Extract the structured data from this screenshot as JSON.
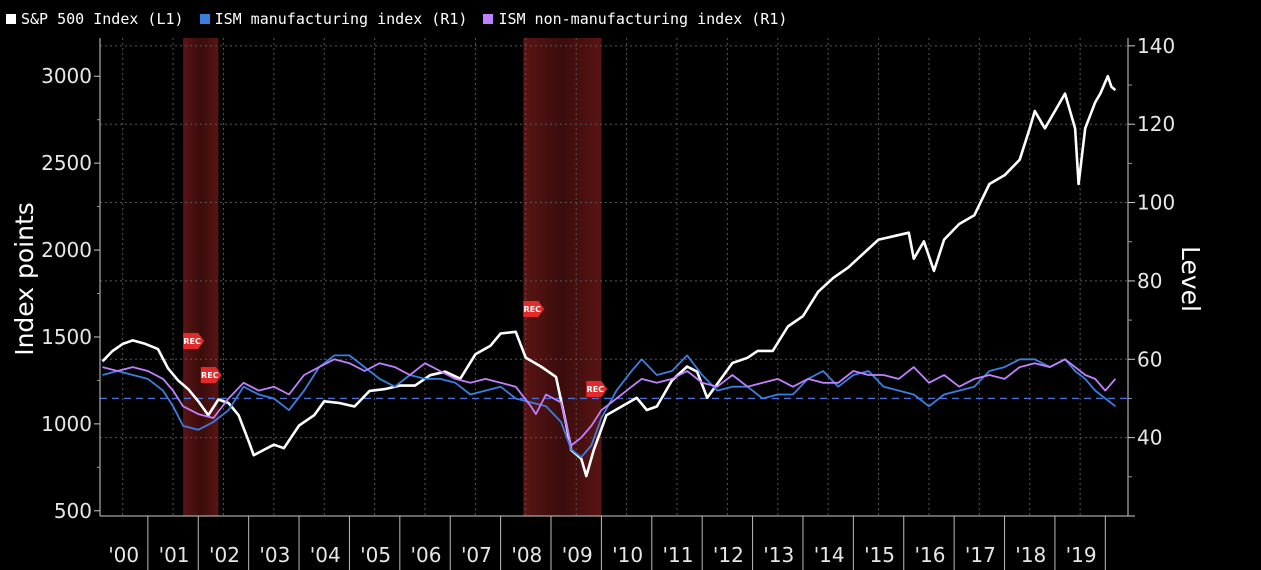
{
  "legend": [
    {
      "label": "S&P 500 Index (L1)",
      "color": "#ffffff"
    },
    {
      "label": "ISM manufacturing index (R1)",
      "color": "#3a7fe0"
    },
    {
      "label": "ISM non-manufacturing index (R1)",
      "color": "#c080ff"
    }
  ],
  "recession_marker_label": "REC",
  "chart_data": {
    "type": "line",
    "ylabel_left": "Index points",
    "ylabel_right": "Level",
    "x_tick_labels": [
      "'00",
      "'01",
      "'02",
      "'03",
      "'04",
      "'05",
      "'06",
      "'07",
      "'08",
      "'09",
      "'10",
      "'11",
      "'12",
      "'13",
      "'14",
      "'15",
      "'16",
      "'17",
      "'18",
      "'19"
    ],
    "xlim": [
      1999.55,
      2019.95
    ],
    "ylim_left": [
      470,
      3220
    ],
    "yticks_left": [
      500,
      1000,
      1500,
      2000,
      2500,
      3000
    ],
    "ylim_right": [
      20,
      142
    ],
    "yticks_right": [
      40,
      60,
      80,
      100,
      120,
      140
    ],
    "reference_line": {
      "axis": "right",
      "value": 50,
      "style": "dashed",
      "color": "#4a6fd8"
    },
    "recessions": [
      {
        "start": 2001.2,
        "end": 2001.9
      },
      {
        "start": 2007.95,
        "end": 2009.5
      }
    ],
    "series": [
      {
        "name": "S&P 500 Index (L1)",
        "axis": "left",
        "color": "#ffffff",
        "x": [
          1999.6,
          1999.8,
          2000.0,
          2000.2,
          2000.45,
          2000.7,
          2000.9,
          2001.1,
          2001.3,
          2001.5,
          2001.7,
          2001.9,
          2002.1,
          2002.3,
          2002.5,
          2002.6,
          2002.8,
          2003.0,
          2003.2,
          2003.5,
          2003.8,
          2004.0,
          2004.3,
          2004.6,
          2004.9,
          2005.2,
          2005.5,
          2005.8,
          2006.1,
          2006.4,
          2006.7,
          2007.0,
          2007.3,
          2007.5,
          2007.8,
          2008.0,
          2008.3,
          2008.6,
          2008.8,
          2008.9,
          2009.1,
          2009.2,
          2009.35,
          2009.6,
          2009.9,
          2010.2,
          2010.4,
          2010.6,
          2010.9,
          2011.2,
          2011.4,
          2011.6,
          2011.8,
          2012.1,
          2012.4,
          2012.6,
          2012.9,
          2013.2,
          2013.5,
          2013.8,
          2014.1,
          2014.4,
          2014.7,
          2015.0,
          2015.3,
          2015.6,
          2015.7,
          2015.9,
          2016.1,
          2016.3,
          2016.6,
          2016.9,
          2017.2,
          2017.5,
          2017.8,
          2018.0,
          2018.1,
          2018.3,
          2018.7,
          2018.9,
          2018.97,
          2019.1,
          2019.3,
          2019.4,
          2019.55,
          2019.62,
          2019.7
        ],
        "values": [
          1360,
          1420,
          1460,
          1480,
          1460,
          1430,
          1320,
          1250,
          1200,
          1130,
          1050,
          1140,
          1120,
          1050,
          900,
          820,
          850,
          880,
          860,
          990,
          1050,
          1130,
          1120,
          1100,
          1190,
          1200,
          1220,
          1220,
          1280,
          1300,
          1260,
          1400,
          1450,
          1520,
          1530,
          1380,
          1330,
          1270,
          1000,
          850,
          800,
          700,
          850,
          1050,
          1100,
          1150,
          1080,
          1100,
          1250,
          1330,
          1300,
          1150,
          1230,
          1350,
          1380,
          1420,
          1420,
          1560,
          1620,
          1760,
          1840,
          1900,
          1980,
          2060,
          2080,
          2100,
          1950,
          2050,
          1880,
          2060,
          2150,
          2200,
          2380,
          2430,
          2520,
          2700,
          2800,
          2700,
          2900,
          2700,
          2380,
          2700,
          2850,
          2900,
          3000,
          2940,
          2920
        ]
      },
      {
        "name": "ISM manufacturing index (R1)",
        "axis": "right",
        "color": "#3a7fe0",
        "x": [
          1999.6,
          1999.9,
          2000.2,
          2000.5,
          2000.8,
          2001.0,
          2001.2,
          2001.5,
          2001.8,
          2002.1,
          2002.4,
          2002.7,
          2003.0,
          2003.3,
          2003.6,
          2003.9,
          2004.2,
          2004.5,
          2004.8,
          2005.1,
          2005.4,
          2005.7,
          2006.0,
          2006.3,
          2006.6,
          2006.9,
          2007.2,
          2007.5,
          2007.8,
          2008.1,
          2008.4,
          2008.7,
          2008.9,
          2009.1,
          2009.3,
          2009.5,
          2009.8,
          2010.1,
          2010.3,
          2010.6,
          2010.9,
          2011.2,
          2011.5,
          2011.8,
          2012.1,
          2012.4,
          2012.7,
          2013.0,
          2013.3,
          2013.6,
          2013.9,
          2014.2,
          2014.5,
          2014.8,
          2015.1,
          2015.4,
          2015.7,
          2016.0,
          2016.3,
          2016.6,
          2016.9,
          2017.2,
          2017.5,
          2017.8,
          2018.1,
          2018.4,
          2018.7,
          2018.9,
          2019.1,
          2019.3,
          2019.5,
          2019.7
        ],
        "values": [
          56,
          57,
          56,
          55,
          52,
          48,
          43,
          42,
          44,
          47,
          53,
          51,
          50,
          47,
          52,
          58,
          61,
          61,
          58,
          55,
          53,
          56,
          55,
          55,
          54,
          51,
          52,
          53,
          50,
          49,
          48,
          44,
          37,
          35,
          38,
          45,
          52,
          57,
          60,
          56,
          57,
          61,
          56,
          52,
          53,
          53,
          50,
          51,
          51,
          55,
          57,
          53,
          56,
          57,
          53,
          52,
          51,
          48,
          51,
          52,
          53,
          57,
          58,
          60,
          60,
          58,
          60,
          57,
          55,
          52,
          50,
          48
        ]
      },
      {
        "name": "ISM non-manufacturing index (R1)",
        "axis": "right",
        "color": "#c080ff",
        "x": [
          1999.6,
          1999.9,
          2000.2,
          2000.5,
          2000.8,
          2001.0,
          2001.2,
          2001.5,
          2001.8,
          2002.1,
          2002.4,
          2002.7,
          2003.0,
          2003.3,
          2003.6,
          2003.9,
          2004.2,
          2004.5,
          2004.8,
          2005.1,
          2005.4,
          2005.7,
          2006.0,
          2006.3,
          2006.6,
          2006.9,
          2007.2,
          2007.5,
          2007.8,
          2008.1,
          2008.2,
          2008.4,
          2008.7,
          2008.9,
          2009.1,
          2009.3,
          2009.5,
          2009.8,
          2010.1,
          2010.3,
          2010.6,
          2010.9,
          2011.2,
          2011.5,
          2011.8,
          2012.1,
          2012.4,
          2012.7,
          2013.0,
          2013.3,
          2013.6,
          2013.9,
          2014.2,
          2014.5,
          2014.8,
          2015.1,
          2015.4,
          2015.7,
          2016.0,
          2016.3,
          2016.6,
          2016.9,
          2017.2,
          2017.5,
          2017.8,
          2018.1,
          2018.4,
          2018.7,
          2018.9,
          2019.1,
          2019.3,
          2019.5,
          2019.7
        ],
        "values": [
          58,
          57,
          58,
          57,
          55,
          52,
          48,
          46,
          45,
          50,
          54,
          52,
          53,
          51,
          56,
          58,
          60,
          59,
          57,
          59,
          58,
          56,
          59,
          57,
          55,
          54,
          55,
          54,
          53,
          48,
          46,
          51,
          49,
          38,
          40,
          43,
          47,
          50,
          53,
          55,
          54,
          55,
          57,
          54,
          53,
          56,
          53,
          54,
          55,
          53,
          55,
          54,
          54,
          57,
          56,
          56,
          55,
          58,
          54,
          56,
          53,
          55,
          56,
          55,
          58,
          59,
          58,
          60,
          58,
          56,
          55,
          52,
          55
        ]
      }
    ]
  }
}
